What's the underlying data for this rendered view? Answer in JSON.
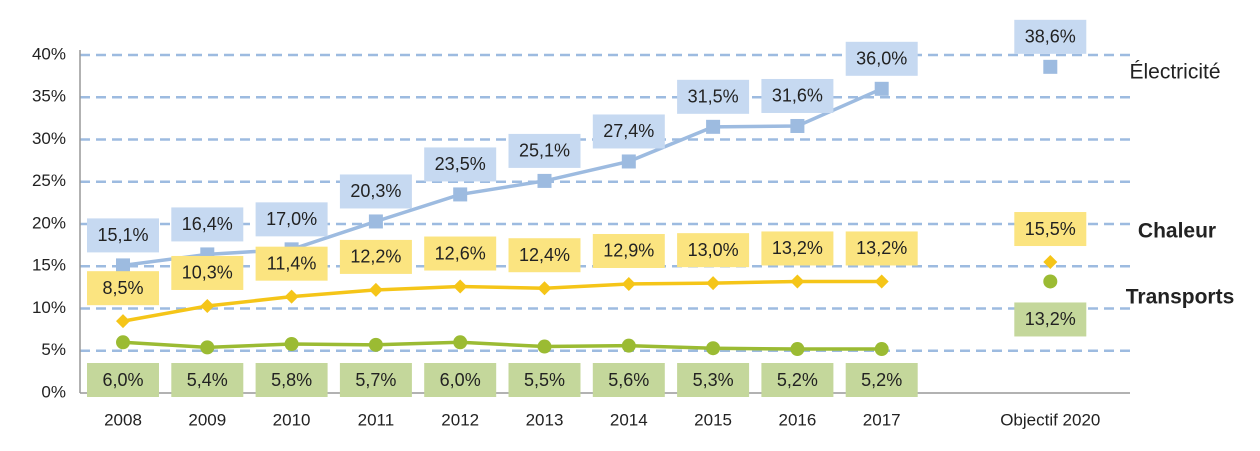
{
  "chart_data": {
    "type": "line",
    "categories": [
      "2008",
      "2009",
      "2010",
      "2011",
      "2012",
      "2013",
      "2014",
      "2015",
      "2016",
      "2017",
      "Objectif 2020"
    ],
    "series": [
      {
        "name": "Électricité",
        "color": "#9dbbe0",
        "box": "#c6d9f1",
        "marker": "square",
        "values": [
          15.1,
          16.4,
          17.0,
          20.3,
          23.5,
          25.1,
          27.4,
          31.5,
          31.6,
          36.0,
          38.6
        ],
        "value_labels": [
          "15,1%",
          "16,4%",
          "17,0%",
          "20,3%",
          "23,5%",
          "25,1%",
          "27,4%",
          "31,5%",
          "31,6%",
          "36,0%",
          "38,6%"
        ]
      },
      {
        "name": "Chaleur",
        "color": "#f5c518",
        "box": "#fbe480",
        "marker": "diamond",
        "values": [
          8.5,
          10.3,
          11.4,
          12.2,
          12.6,
          12.4,
          12.9,
          13.0,
          13.2,
          13.2,
          15.5
        ],
        "value_labels": [
          "8,5%",
          "10,3%",
          "11,4%",
          "12,2%",
          "12,6%",
          "12,4%",
          "12,9%",
          "13,0%",
          "13,2%",
          "13,2%",
          "15,5%"
        ]
      },
      {
        "name": "Transports",
        "color": "#9bbb33",
        "box": "#c4d79b",
        "marker": "circle",
        "values": [
          6.0,
          5.4,
          5.8,
          5.7,
          6.0,
          5.5,
          5.6,
          5.3,
          5.2,
          5.2,
          13.2
        ],
        "value_labels": [
          "6,0%",
          "5,4%",
          "5,8%",
          "5,7%",
          "6,0%",
          "5,5%",
          "5,6%",
          "5,3%",
          "5,2%",
          "5,2%",
          "13,2%"
        ]
      }
    ],
    "ylim": [
      0,
      40
    ],
    "yticks": [
      {
        "value": 0,
        "label": "0%"
      },
      {
        "value": 5,
        "label": "5%"
      },
      {
        "value": 10,
        "label": "10%"
      },
      {
        "value": 15,
        "label": "15%"
      },
      {
        "value": 20,
        "label": "20%"
      },
      {
        "value": 25,
        "label": "25%"
      },
      {
        "value": 30,
        "label": "30%"
      },
      {
        "value": 35,
        "label": "35%"
      },
      {
        "value": 40,
        "label": "40%"
      }
    ],
    "grid": true
  }
}
